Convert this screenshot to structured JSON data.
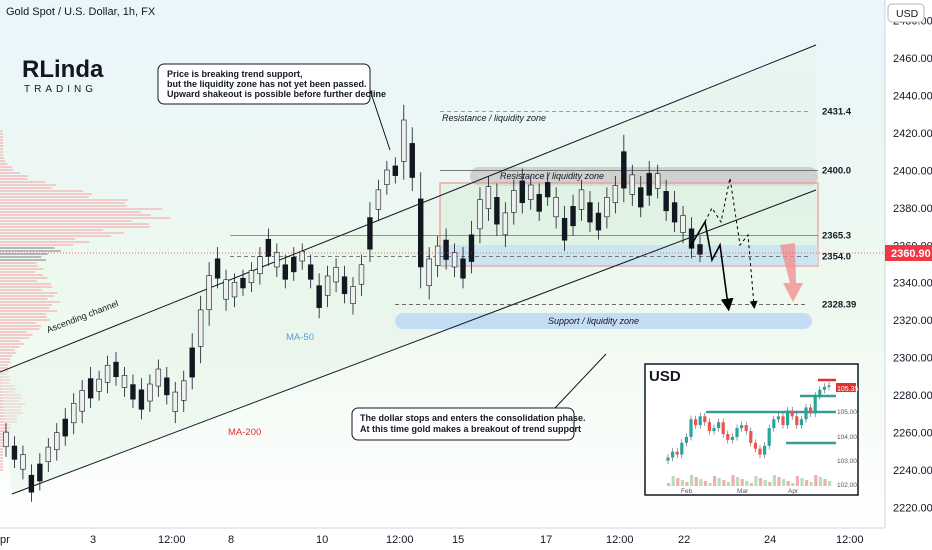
{
  "header": {
    "title": "Gold Spot / U.S. Dollar, 1h, FX",
    "currency_button": "USD"
  },
  "logo": {
    "line1": "RLinda",
    "line2": "TRADING"
  },
  "chart_data": {
    "type": "candlestick",
    "y_axis": {
      "ticks": [
        2220,
        2240,
        2260,
        2280,
        2300,
        2320,
        2340,
        2360,
        2380,
        2400,
        2420,
        2440,
        2460,
        2480
      ],
      "range": [
        2209,
        2491
      ]
    },
    "x_axis": {
      "labels": [
        "pr",
        "3",
        "12:00",
        "8",
        "10",
        "12:00",
        "15",
        "17",
        "12:00",
        "22",
        "24",
        "12:00"
      ]
    },
    "current_price": {
      "value": "2360.90",
      "color": "#f23645"
    },
    "levels": [
      {
        "value": 2431.4,
        "label": "2431.4"
      },
      {
        "value": 2400.0,
        "label": "2400.0"
      },
      {
        "value": 2365.3,
        "label": "2365.3"
      },
      {
        "value": 2354.0,
        "label": "2354.0"
      },
      {
        "value": 2328.39,
        "label": "2328.39"
      }
    ],
    "zones": {
      "resistance_top": "Resistance / liquidity zone",
      "resistance_mid": "Resistance / liquidity zone",
      "support": "Support / liquidity zone"
    },
    "channel_label": "Ascending channel",
    "ma_labels": [
      {
        "name": "MA-50",
        "color": "#5b9bd5"
      },
      {
        "name": "MA-200",
        "color": "#e03131"
      }
    ],
    "annotations": [
      {
        "lines": [
          "Price is breaking trend support,",
          "but the liquidity zone has not yet been passed.",
          "Upward shakeout is possible before further decline"
        ]
      },
      {
        "lines": [
          "The dollar stops and enters the consolidation phase.",
          "At this time gold makes a breakout of trend support"
        ]
      }
    ],
    "candles_path": [
      [
        2250,
        2262
      ],
      [
        2244,
        2255
      ],
      [
        2238,
        2250
      ],
      [
        2226,
        2240
      ],
      [
        2232,
        2246
      ],
      [
        2242,
        2254
      ],
      [
        2248,
        2262
      ],
      [
        2256,
        2270
      ],
      [
        2262,
        2278
      ],
      [
        2268,
        2285
      ],
      [
        2276,
        2292
      ],
      [
        2280,
        2290
      ],
      [
        2284,
        2298
      ],
      [
        2288,
        2300
      ],
      [
        2282,
        2292
      ],
      [
        2276,
        2288
      ],
      [
        2270,
        2286
      ],
      [
        2274,
        2288
      ],
      [
        2282,
        2296
      ],
      [
        2278,
        2292
      ],
      [
        2268,
        2284
      ],
      [
        2274,
        2290
      ],
      [
        2286,
        2310
      ],
      [
        2300,
        2330
      ],
      [
        2320,
        2348
      ],
      [
        2340,
        2356
      ],
      [
        2328,
        2344
      ],
      [
        2330,
        2342
      ],
      [
        2336,
        2344
      ],
      [
        2338,
        2348
      ],
      [
        2342,
        2356
      ],
      [
        2352,
        2366
      ],
      [
        2346,
        2358
      ],
      [
        2340,
        2352
      ],
      [
        2344,
        2356
      ],
      [
        2350,
        2358
      ],
      [
        2340,
        2352
      ],
      [
        2324,
        2342
      ],
      [
        2330,
        2346
      ],
      [
        2338,
        2350
      ],
      [
        2332,
        2346
      ],
      [
        2326,
        2340
      ],
      [
        2336,
        2352
      ],
      [
        2354,
        2380
      ],
      [
        2376,
        2392
      ],
      [
        2390,
        2402
      ],
      [
        2396,
        2404
      ],
      [
        2398,
        2432
      ],
      [
        2392,
        2420
      ],
      [
        2340,
        2396
      ],
      [
        2334,
        2356
      ],
      [
        2346,
        2362
      ],
      [
        2350,
        2366
      ],
      [
        2346,
        2358
      ],
      [
        2340,
        2356
      ],
      [
        2348,
        2370
      ],
      [
        2364,
        2388
      ],
      [
        2376,
        2394
      ],
      [
        2368,
        2390
      ],
      [
        2362,
        2380
      ],
      [
        2374,
        2392
      ],
      [
        2380,
        2398
      ],
      [
        2382,
        2394
      ],
      [
        2376,
        2390
      ],
      [
        2384,
        2396
      ],
      [
        2372,
        2388
      ],
      [
        2360,
        2378
      ],
      [
        2368,
        2384
      ],
      [
        2376,
        2392
      ],
      [
        2370,
        2386
      ],
      [
        2366,
        2380
      ],
      [
        2372,
        2388
      ],
      [
        2380,
        2394
      ],
      [
        2386,
        2416
      ],
      [
        2384,
        2400
      ],
      [
        2378,
        2394
      ],
      [
        2384,
        2402
      ],
      [
        2388,
        2400
      ],
      [
        2376,
        2392
      ],
      [
        2370,
        2386
      ],
      [
        2364,
        2378
      ],
      [
        2356,
        2372
      ],
      [
        2354,
        2362
      ]
    ],
    "inset": {
      "title": "USD",
      "y_ticks": [
        "105.00",
        "104.00",
        "103.00",
        "102.00"
      ],
      "x_labels": [
        "Feb",
        "Mar",
        "Apr"
      ],
      "current": "105.35"
    }
  }
}
